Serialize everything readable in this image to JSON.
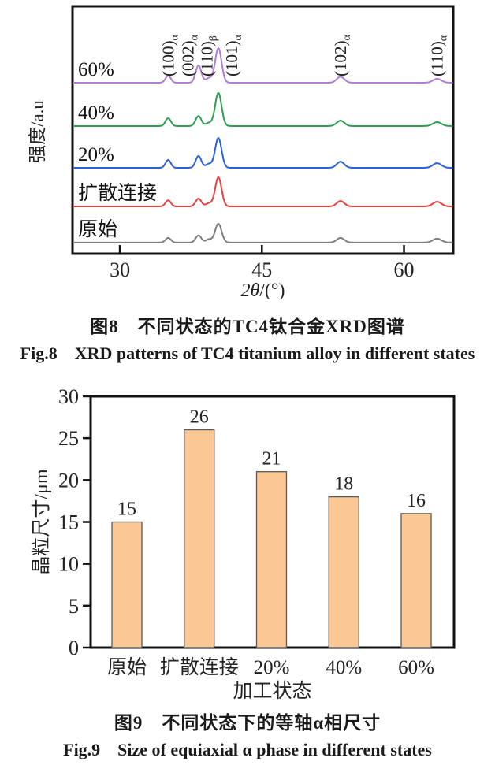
{
  "figure8": {
    "caption_cn": "图8　不同状态的TC4钛合金XRD图谱",
    "caption_en": "Fig.8　XRD patterns of TC4 titanium alloy in different states"
  },
  "figure9": {
    "caption_cn": "图9　不同状态下的等轴α相尺寸",
    "caption_en": "Fig.9　Size of equiaxial α phase in different states"
  },
  "chart_data": [
    {
      "type": "line",
      "title": "XRD patterns of TC4 titanium alloy in different states",
      "xlabel": "2θ/(°)",
      "ylabel": "强度/a.u",
      "xlim": [
        25,
        65.2
      ],
      "xticks": [
        30,
        45,
        60
      ],
      "grid": false,
      "peak_positions_2theta": [
        35.1,
        38.3,
        39.4,
        40.4,
        53.3,
        63.5
      ],
      "peak_label_x": [
        35.1,
        37.2,
        39.2,
        41.8,
        53.3,
        63.5
      ],
      "peak_sigmas": [
        0.28,
        0.3,
        0.32,
        0.34,
        0.4,
        0.45
      ],
      "peak_labels": [
        {
          "hkl": "(100)",
          "phase": "α"
        },
        {
          "hkl": "(002)",
          "phase": "α"
        },
        {
          "hkl": "(110)",
          "phase": "β"
        },
        {
          "hkl": "(101)",
          "phase": "α"
        },
        {
          "hkl": "(102)",
          "phase": "α"
        },
        {
          "hkl": "(110)",
          "phase": "α"
        }
      ],
      "series": [
        {
          "name": "60%",
          "color": "#B07CD6",
          "baseline": 0.691,
          "peak_heights": [
            0.029,
            0.07,
            0.019,
            0.14,
            0.025,
            0.016
          ]
        },
        {
          "name": "40%",
          "color": "#2E9E50",
          "baseline": 0.516,
          "peak_heights": [
            0.032,
            0.041,
            0.013,
            0.134,
            0.022,
            0.016
          ]
        },
        {
          "name": "20%",
          "color": "#2A62D9",
          "baseline": 0.347,
          "peak_heights": [
            0.032,
            0.048,
            0.016,
            0.121,
            0.025,
            0.019
          ]
        },
        {
          "name": "扩散连接",
          "color": "#E8413E",
          "baseline": 0.191,
          "peak_heights": [
            0.025,
            0.032,
            0.013,
            0.118,
            0.022,
            0.019
          ]
        },
        {
          "name": "原始",
          "color": "#7F7F7F",
          "baseline": 0.045,
          "peak_heights": [
            0.019,
            0.029,
            0.013,
            0.076,
            0.019,
            0.016
          ]
        }
      ]
    },
    {
      "type": "bar",
      "categories": [
        "原始",
        "扩散连接",
        "20%",
        "40%",
        "60%"
      ],
      "values": [
        15,
        26,
        21,
        18,
        16
      ],
      "xlabel": "加工状态",
      "ylabel": "晶粒尺寸/μm",
      "ylim": [
        0,
        30
      ],
      "yticks": [
        0,
        5,
        10,
        15,
        20,
        25,
        30
      ],
      "bar_color": "#FAC795",
      "bar_edge_color": "#595959",
      "show_value_labels": true,
      "grid": false,
      "legend": "none"
    }
  ]
}
